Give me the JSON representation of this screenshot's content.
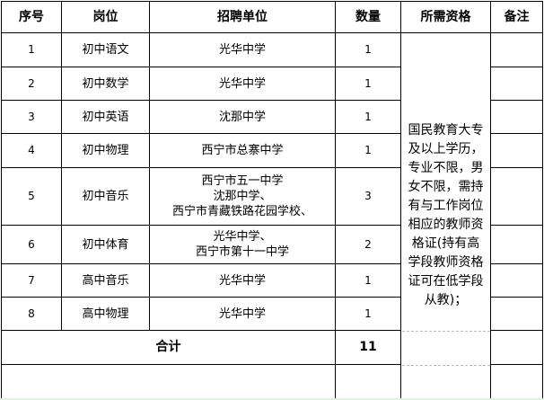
{
  "headers": {
    "seq": "序号",
    "position": "岗位",
    "unit": "招聘单位",
    "count": "数量",
    "qualification": "所需资格",
    "remarks": "备注"
  },
  "rows": [
    {
      "seq": "1",
      "position": "初中语文",
      "unit": [
        "光华中学"
      ],
      "count": "1"
    },
    {
      "seq": "2",
      "position": "初中数学",
      "unit": [
        "光华中学"
      ],
      "count": "1"
    },
    {
      "seq": "3",
      "position": "初中英语",
      "unit": [
        "沈那中学"
      ],
      "count": "1"
    },
    {
      "seq": "4",
      "position": "初中物理",
      "unit": [
        "西宁市总寨中学"
      ],
      "count": "1"
    },
    {
      "seq": "5",
      "position": "初中音乐",
      "unit": [
        "西宁市五一中学",
        "沈那中学、",
        "西宁市青藏铁路花园学校、"
      ],
      "count": "3"
    },
    {
      "seq": "6",
      "position": "初中体育",
      "unit": [
        "光华中学、",
        "西宁市第十一中学"
      ],
      "count": "2"
    },
    {
      "seq": "7",
      "position": "高中音乐",
      "unit": [
        "光华中学"
      ],
      "count": "1"
    },
    {
      "seq": "8",
      "position": "高中物理",
      "unit": [
        "光华中学"
      ],
      "count": "1"
    }
  ],
  "qualification_lines": [
    "国民教育大专",
    "及以上学历，",
    "专业不限，男",
    "女不限，需持",
    "有与工作岗位",
    "相应的教师资",
    "格证(持有高",
    "学段教师资格",
    "证可在低学段",
    "从教)；"
  ],
  "total": {
    "label": "合计",
    "count": "11"
  }
}
